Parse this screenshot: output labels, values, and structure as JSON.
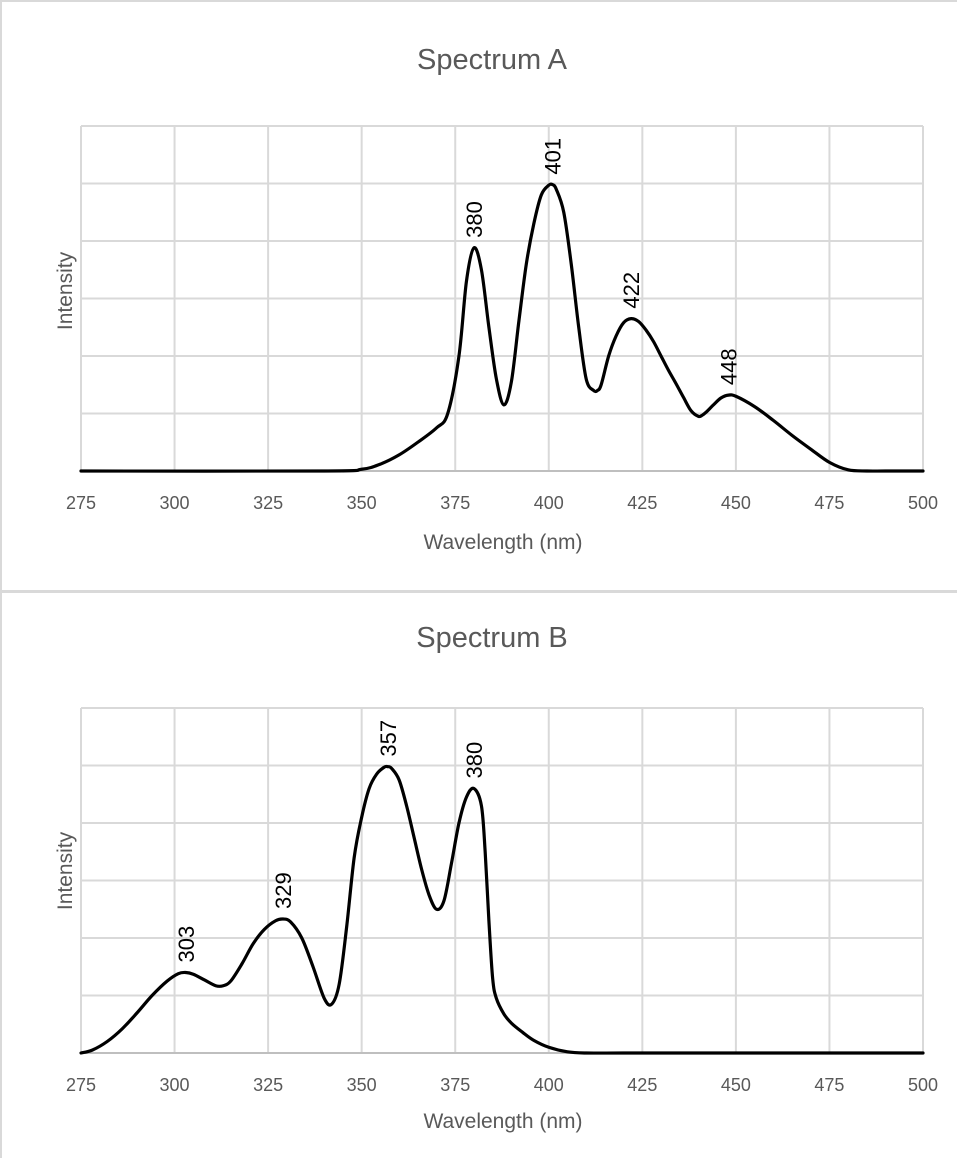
{
  "chart_data": [
    {
      "type": "line",
      "title": "Spectrum A",
      "xlabel": "Wavelength (nm)",
      "ylabel": "Intensity",
      "xlim": [
        275,
        500
      ],
      "xticks": [
        275,
        300,
        325,
        350,
        375,
        400,
        425,
        450,
        475,
        500
      ],
      "ylim": [
        0,
        6
      ],
      "grid": true,
      "peaks": [
        {
          "x": 380,
          "y": 3.88,
          "label": "380"
        },
        {
          "x": 401,
          "y": 4.98,
          "label": "401"
        },
        {
          "x": 422,
          "y": 2.65,
          "label": "422"
        },
        {
          "x": 448,
          "y": 1.32,
          "label": "448"
        }
      ],
      "series": [
        {
          "x": [
            275,
            340,
            350,
            355,
            360,
            365,
            370,
            373,
            376,
            378,
            380,
            382,
            384,
            386,
            388,
            390,
            392,
            394,
            396,
            398,
            400,
            401,
            402,
            404,
            406,
            408,
            410,
            412,
            413,
            414,
            416,
            418,
            420,
            422,
            424,
            426,
            428,
            430,
            432,
            434,
            436,
            438,
            440,
            441,
            442,
            444,
            446,
            448,
            450,
            455,
            460,
            465,
            470,
            475,
            480,
            485,
            490,
            500
          ],
          "y": [
            0,
            0,
            0.03,
            0.12,
            0.28,
            0.5,
            0.75,
            1.0,
            2.0,
            3.3,
            3.88,
            3.5,
            2.5,
            1.6,
            1.15,
            1.55,
            2.6,
            3.6,
            4.3,
            4.8,
            4.97,
            4.98,
            4.9,
            4.5,
            3.6,
            2.5,
            1.6,
            1.4,
            1.4,
            1.5,
            2.0,
            2.35,
            2.58,
            2.65,
            2.6,
            2.45,
            2.25,
            2.0,
            1.75,
            1.52,
            1.28,
            1.05,
            0.95,
            0.97,
            1.02,
            1.15,
            1.27,
            1.32,
            1.3,
            1.12,
            0.88,
            0.62,
            0.38,
            0.15,
            0.02,
            0,
            0,
            0
          ]
        }
      ]
    },
    {
      "type": "line",
      "title": "Spectrum B",
      "xlabel": "Wavelength (nm)",
      "ylabel": "Intensity",
      "xlim": [
        275,
        500
      ],
      "xticks": [
        275,
        300,
        325,
        350,
        375,
        400,
        425,
        450,
        475,
        500
      ],
      "ylim": [
        0,
        6
      ],
      "grid": true,
      "peaks": [
        {
          "x": 303,
          "y": 1.4,
          "label": "303"
        },
        {
          "x": 329,
          "y": 2.33,
          "label": "329"
        },
        {
          "x": 357,
          "y": 4.98,
          "label": "357"
        },
        {
          "x": 380,
          "y": 4.6,
          "label": "380"
        }
      ],
      "series": [
        {
          "x": [
            275,
            278,
            282,
            286,
            290,
            294,
            298,
            301,
            303,
            305,
            308,
            311,
            313,
            315,
            318,
            321,
            324,
            327,
            329,
            331,
            334,
            337,
            340,
            342,
            344,
            346,
            348,
            350,
            352,
            354,
            356,
            357,
            358,
            360,
            362,
            364,
            366,
            368,
            370,
            372,
            374,
            376,
            378,
            380,
            382,
            383,
            384,
            385,
            386,
            388,
            390,
            393,
            396,
            400,
            405,
            410,
            420,
            440,
            500
          ],
          "y": [
            0,
            0.05,
            0.2,
            0.42,
            0.7,
            1.0,
            1.25,
            1.38,
            1.4,
            1.37,
            1.27,
            1.17,
            1.17,
            1.25,
            1.55,
            1.9,
            2.15,
            2.3,
            2.33,
            2.28,
            2.0,
            1.5,
            0.95,
            0.85,
            1.2,
            2.2,
            3.4,
            4.1,
            4.6,
            4.85,
            4.97,
            4.98,
            4.95,
            4.75,
            4.3,
            3.75,
            3.2,
            2.75,
            2.5,
            2.65,
            3.3,
            4.0,
            4.45,
            4.6,
            4.3,
            3.5,
            2.3,
            1.3,
            0.95,
            0.68,
            0.52,
            0.36,
            0.22,
            0.1,
            0.02,
            0,
            0,
            0,
            0
          ]
        }
      ]
    }
  ]
}
